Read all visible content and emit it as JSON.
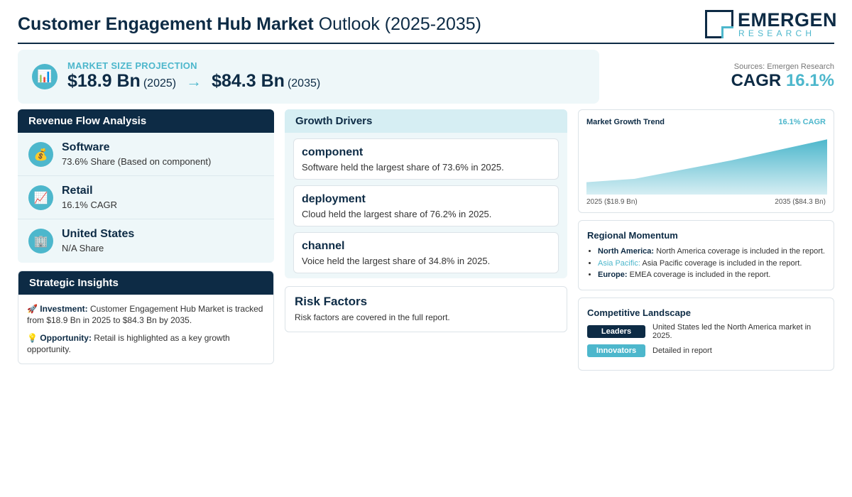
{
  "header": {
    "title_bold": "Customer Engagement Hub Market",
    "title_rest": "Outlook (2025-2035)",
    "logo_name": "EMERGEN",
    "logo_sub": "RESEARCH"
  },
  "banner": {
    "icon": "bar-chart-icon",
    "label": "MARKET SIZE PROJECTION",
    "start_value": "$18.9 Bn",
    "start_year": "(2025)",
    "arrow": "→",
    "end_value": "$84.3 Bn",
    "end_year": "(2035)"
  },
  "sources": "Sources: Emergen Research",
  "cagr": {
    "label": "CAGR",
    "value": "16.1%"
  },
  "revenue_flow": {
    "title": "Revenue Flow Analysis",
    "items": [
      {
        "icon": "money-bag-icon",
        "glyph": "💰",
        "name": "Software",
        "detail": "73.6% Share (Based on component)"
      },
      {
        "icon": "trend-chart-icon",
        "glyph": "📈",
        "name": "Retail",
        "detail": "16.1% CAGR"
      },
      {
        "icon": "building-icon",
        "glyph": "🏢",
        "name": "United States",
        "detail": "N/A Share"
      }
    ]
  },
  "strategic": {
    "title": "Strategic Insights",
    "investment": {
      "glyph": "🚀",
      "label": "Investment:",
      "text": "Customer Engagement Hub Market is tracked from $18.9 Bn in 2025 to $84.3 Bn by 2035."
    },
    "opportunity": {
      "glyph": "💡",
      "label": "Opportunity:",
      "text": "Retail is highlighted as a key growth opportunity."
    }
  },
  "drivers": {
    "title": "Growth Drivers",
    "items": [
      {
        "title": "component",
        "text": "Software held the largest share of 73.6% in 2025."
      },
      {
        "title": "deployment",
        "text": "Cloud held the largest share of 76.2% in 2025."
      },
      {
        "title": "channel",
        "text": "Voice held the largest share of 34.8% in 2025."
      }
    ]
  },
  "risk": {
    "title": "Risk Factors",
    "text": "Risk factors are covered in the full report."
  },
  "trend": {
    "title": "Market Growth Trend",
    "cagr_label": "16.1% CAGR",
    "start_label": "2025 ($18.9 Bn)",
    "end_label": "2035 ($84.3 Bn)"
  },
  "chart_data": {
    "type": "area",
    "x": [
      2025,
      2027,
      2031,
      2035
    ],
    "values": [
      18.9,
      24.0,
      52.0,
      84.3
    ],
    "title": "Market Growth Trend",
    "xlabel": "",
    "ylabel": "",
    "ylim": [
      0,
      90
    ],
    "grid": false,
    "colors": {
      "top": "#4db7cc",
      "bottom": "#d6eef3"
    }
  },
  "regional": {
    "title": "Regional Momentum",
    "items": [
      {
        "region": "North America:",
        "text": "North America coverage is included in the report."
      },
      {
        "region": "Asia Pacific:",
        "text": "Asia Pacific coverage is included in the report."
      },
      {
        "region": "Europe:",
        "text": "EMEA coverage is included in the report."
      }
    ]
  },
  "competitive": {
    "title": "Competitive Landscape",
    "rows": [
      {
        "badge": "Leaders",
        "text": "United States led the North America market in 2025."
      },
      {
        "badge": "Innovators",
        "text": "Detailed in report"
      }
    ]
  },
  "colors": {
    "navy": "#0d2b45",
    "accent": "#4db7cc",
    "panel": "#eef7f9"
  }
}
